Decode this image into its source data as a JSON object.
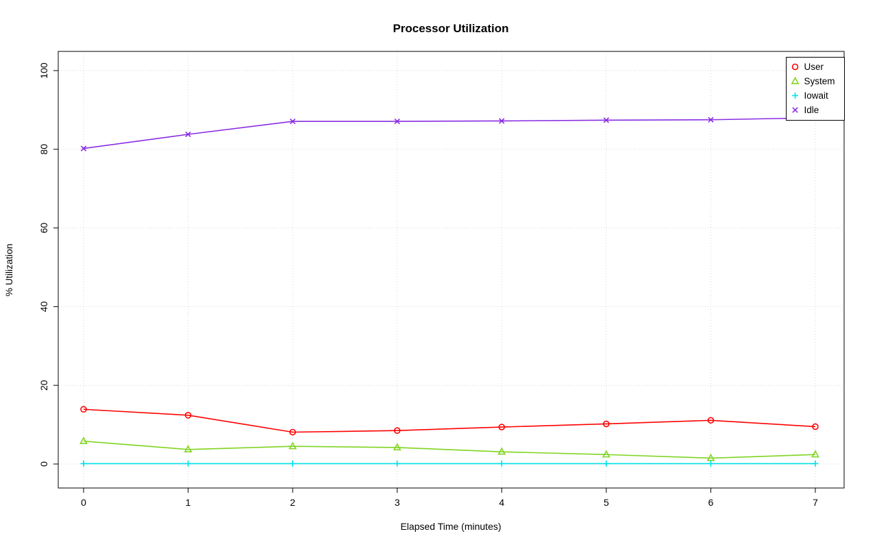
{
  "chart_data": {
    "type": "line",
    "title": "Processor Utilization",
    "xlabel": "Elapsed Time (minutes)",
    "ylabel": "% Utilization",
    "x": [
      0,
      1,
      2,
      3,
      4,
      5,
      6,
      7
    ],
    "xlim": [
      0,
      7
    ],
    "ylim": [
      0,
      100
    ],
    "x_ticks": [
      0,
      1,
      2,
      3,
      4,
      5,
      6,
      7
    ],
    "y_ticks": [
      0,
      20,
      40,
      60,
      80,
      100
    ],
    "grid": true,
    "grid_style": "dotted",
    "grid_color": "#d4d4d4",
    "legend_position": "top-right",
    "series": [
      {
        "name": "User",
        "color": "#ff0000",
        "marker": "circle",
        "values": [
          13.9,
          12.4,
          8.1,
          8.5,
          9.4,
          10.2,
          11.1,
          9.5
        ]
      },
      {
        "name": "System",
        "color": "#7fd420",
        "marker": "triangle",
        "values": [
          5.8,
          3.7,
          4.5,
          4.2,
          3.1,
          2.4,
          1.5,
          2.4
        ]
      },
      {
        "name": "Iowait",
        "color": "#00e0e8",
        "marker": "plus",
        "values": [
          0.1,
          0.1,
          0.1,
          0.1,
          0.1,
          0.1,
          0.1,
          0.1
        ]
      },
      {
        "name": "Idle",
        "color": "#8a2be2",
        "marker": "x",
        "values": [
          80.2,
          83.8,
          87.1,
          87.1,
          87.2,
          87.4,
          87.5,
          88.0
        ]
      }
    ]
  }
}
